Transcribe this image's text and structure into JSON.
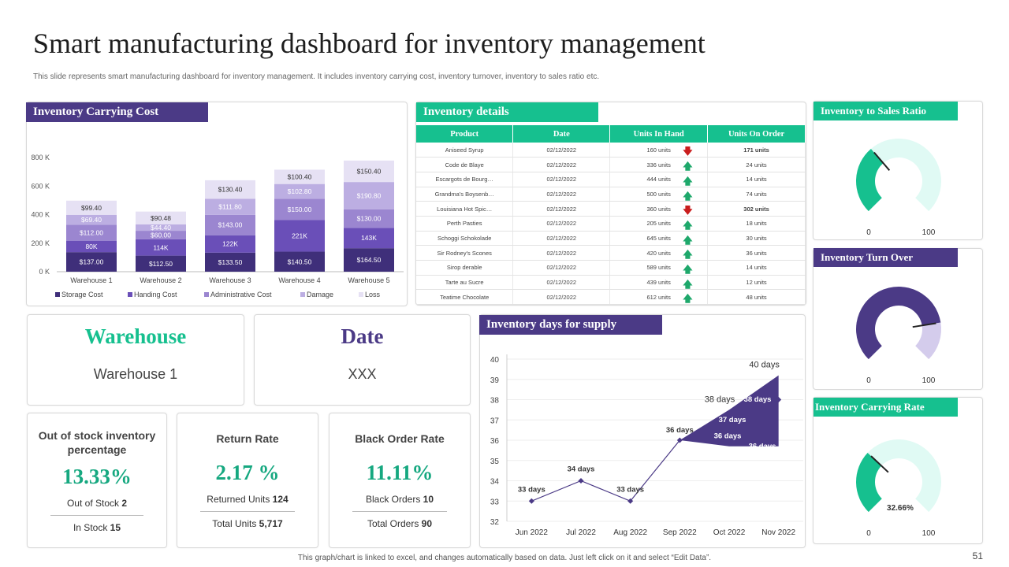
{
  "page": {
    "title": "Smart manufacturing dashboard for inventory management",
    "subtitle": "This slide represents smart manufacturing dashboard for inventory management. It includes inventory carrying cost, inventory turnover, inventory to sales ratio etc.",
    "footer": "This graph/chart is linked to excel,  and changes automatically based on data. Just left click on it and select “Edit Data”.",
    "page_number": "51"
  },
  "colors": {
    "purple": "#4b3a86",
    "green": "#16c08f",
    "light_green": "#e0faf4",
    "light_purple": "#d4ccec"
  },
  "carrying_cost": {
    "title": "Inventory Carrying Cost",
    "chart_data": {
      "type": "bar",
      "stacked": true,
      "categories": [
        "Warehouse 1",
        "Warehouse 2",
        "Warehouse 3",
        "Warehouse 4",
        "Warehouse 5"
      ],
      "yticks": [
        "0 K",
        "200 K",
        "400 K",
        "600 K",
        "800 K"
      ],
      "ylim": [
        0,
        800
      ],
      "series": [
        {
          "name": "Storage Cost",
          "color": "#3f2f7a",
          "text_color": "#ffffff",
          "values": [
            137.0,
            112.5,
            133.5,
            140.5,
            164.5
          ],
          "labels": [
            "$137.00",
            "$112.50",
            "$133.50",
            "$140.50",
            "$164.50"
          ]
        },
        {
          "name": "Handing Cost",
          "color": "#6a4fb8",
          "text_color": "#ffffff",
          "values": [
            80,
            114,
            122,
            221,
            143
          ],
          "labels": [
            "80K",
            "114K",
            "122K",
            "221K",
            "143K"
          ]
        },
        {
          "name": "Administrative Cost",
          "color": "#9b86d0",
          "text_color": "#ffffff",
          "values": [
            112.0,
            60.0,
            143.0,
            150.0,
            130.0
          ],
          "labels": [
            "$112.00",
            "$60.00",
            "$143.00",
            "$150.00",
            "$130.00"
          ]
        },
        {
          "name": "Damage",
          "color": "#bcaee2",
          "text_color": "#ffffff",
          "values": [
            69.4,
            44.4,
            111.8,
            102.8,
            190.8
          ],
          "labels": [
            "$69.40",
            "$44.40",
            "$111.80",
            "$102.80",
            "$190.80"
          ]
        },
        {
          "name": "Loss",
          "color": "#e6e1f4",
          "text_color": "#333333",
          "values": [
            99.4,
            90.48,
            130.4,
            100.4,
            150.4
          ],
          "labels": [
            "$99.40",
            "$90.48",
            "$130.40",
            "$100.40",
            "$150.40"
          ]
        }
      ]
    }
  },
  "inventory_details": {
    "title": "Inventory details",
    "columns": [
      "Product",
      "Date",
      "Units In Hand",
      "Units On Order"
    ],
    "rows": [
      {
        "product": "Aniseed Syrup",
        "date": "02/12/2022",
        "in_hand": "160 units",
        "trend": "down",
        "on_order": "171 units"
      },
      {
        "product": "Code de Blaye",
        "date": "02/12/2022",
        "in_hand": "336 units",
        "trend": "up",
        "on_order": "24 units"
      },
      {
        "product": "Escargots de Bourg…",
        "date": "02/12/2022",
        "in_hand": "444 units",
        "trend": "up",
        "on_order": "14 units"
      },
      {
        "product": "Grandma's Boysenb…",
        "date": "02/12/2022",
        "in_hand": "500 units",
        "trend": "up",
        "on_order": "74 units"
      },
      {
        "product": "Louisiana Hot Spic…",
        "date": "02/12/2022",
        "in_hand": "360 units",
        "trend": "down",
        "on_order": "302 units"
      },
      {
        "product": "Perth Pasties",
        "date": "02/12/2022",
        "in_hand": "205 units",
        "trend": "up",
        "on_order": "18 units"
      },
      {
        "product": "Schoggi Schokolade",
        "date": "02/12/2022",
        "in_hand": "645 units",
        "trend": "up",
        "on_order": "30 units"
      },
      {
        "product": "Sir Rodney's Scones",
        "date": "02/12/2022",
        "in_hand": "420 units",
        "trend": "up",
        "on_order": "36 units"
      },
      {
        "product": "Sirop derable",
        "date": "02/12/2022",
        "in_hand": "589 units",
        "trend": "up",
        "on_order": "14 units"
      },
      {
        "product": "Tarte au Sucre",
        "date": "02/12/2022",
        "in_hand": "439 units",
        "trend": "up",
        "on_order": "12 units"
      },
      {
        "product": "Teatime Chocolate",
        "date": "02/12/2022",
        "in_hand": "612 units",
        "trend": "up",
        "on_order": "48 units"
      }
    ]
  },
  "gauges": {
    "sales_ratio": {
      "title": "Inventory to Sales Ratio",
      "value": 35,
      "min": "0",
      "max": "100",
      "color": "#16c08f",
      "track": "#e0faf4"
    },
    "turn_over": {
      "title": "Inventory Turn Over",
      "value": 80,
      "min": "0",
      "max": "100",
      "color": "#4b3a86",
      "track": "#d4ccec"
    },
    "carrying_rate": {
      "title": "Inventory Carrying Rate",
      "value": 32.66,
      "value_label": "32.66%",
      "min": "0",
      "max": "100",
      "color": "#16c08f",
      "track": "#e0faf4"
    }
  },
  "warehouse_card": {
    "title": "Warehouse",
    "value": "Warehouse 1"
  },
  "date_card": {
    "title": "Date",
    "value": "XXX"
  },
  "kpis": {
    "out_of_stock": {
      "heading": "Out of stock inventory percentage",
      "value": "13.33%",
      "line1_label": "Out of Stock",
      "line1_value": "2",
      "line2_label": "In Stock",
      "line2_value": "15"
    },
    "return_rate": {
      "heading": "Return Rate",
      "value": "2.17 %",
      "line1_label": "Returned Units",
      "line1_value": "124",
      "line2_label": "Total Units",
      "line2_value": "5,717"
    },
    "black_order": {
      "heading": "Black Order Rate",
      "value": "11.11%",
      "line1_label": "Black Orders",
      "line1_value": "10",
      "line2_label": "Total Orders",
      "line2_value": "90"
    }
  },
  "days_supply": {
    "title": "Inventory days for supply",
    "chart_data": {
      "type": "line",
      "categories": [
        "Jun 2022",
        "Jul 2022",
        "Aug 2022",
        "Sep 2022",
        "Oct 2022",
        "Nov 2022"
      ],
      "yticks": [
        "32",
        "33",
        "34",
        "35",
        "36",
        "37",
        "38",
        "39",
        "40"
      ],
      "ylim": [
        32,
        40
      ],
      "line": {
        "values": [
          33,
          34,
          33,
          36,
          38,
          38
        ],
        "labels": [
          "33 days",
          "34 days",
          "33 days",
          "36 days",
          "38 days",
          ""
        ]
      },
      "band": {
        "upper": [
          36,
          37.5,
          39.2
        ],
        "lower": [
          36,
          35.7,
          35.7
        ],
        "band_labels": [
          "36 days",
          "37 days",
          "38 days",
          "36 days"
        ],
        "top_label": "40 days"
      }
    }
  }
}
